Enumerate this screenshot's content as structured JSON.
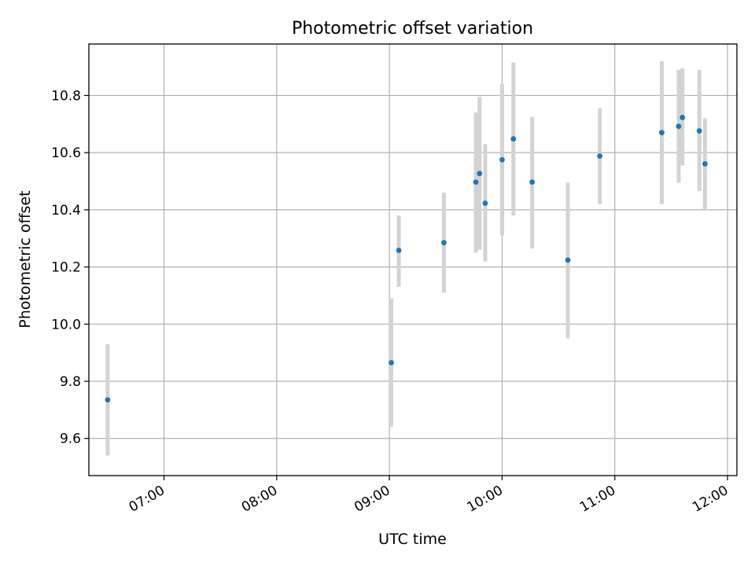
{
  "chart_data": {
    "type": "scatter",
    "title": "Photometric offset variation",
    "xlabel": "UTC time",
    "ylabel": "Photometric offset",
    "x_axis_type": "time",
    "xlim": [
      "06:20",
      "12:05"
    ],
    "ylim": [
      9.47,
      10.98
    ],
    "xticks": [
      "07:00",
      "08:00",
      "09:00",
      "10:00",
      "11:00",
      "12:00"
    ],
    "yticks": [
      "9.6",
      "9.8",
      "10.0",
      "10.2",
      "10.4",
      "10.6",
      "10.8"
    ],
    "grid": true,
    "marker_color": "#1f77b4",
    "errorbar_color": "#d3d3d3",
    "points": [
      {
        "time": "06:30",
        "offset": 9.735,
        "low": 9.54,
        "high": 9.93
      },
      {
        "time": "09:01",
        "offset": 9.865,
        "low": 9.64,
        "high": 10.09
      },
      {
        "time": "09:05",
        "offset": 10.258,
        "low": 10.13,
        "high": 10.38
      },
      {
        "time": "09:29",
        "offset": 10.285,
        "low": 10.11,
        "high": 10.46
      },
      {
        "time": "09:46",
        "offset": 10.497,
        "low": 10.25,
        "high": 10.74
      },
      {
        "time": "09:48",
        "offset": 10.527,
        "low": 10.26,
        "high": 10.795
      },
      {
        "time": "09:51",
        "offset": 10.423,
        "low": 10.22,
        "high": 10.63
      },
      {
        "time": "10:00",
        "offset": 10.575,
        "low": 10.31,
        "high": 10.84
      },
      {
        "time": "10:06",
        "offset": 10.648,
        "low": 10.38,
        "high": 10.915
      },
      {
        "time": "10:16",
        "offset": 10.497,
        "low": 10.265,
        "high": 10.725
      },
      {
        "time": "10:35",
        "offset": 10.224,
        "low": 9.95,
        "high": 10.495
      },
      {
        "time": "10:52",
        "offset": 10.588,
        "low": 10.42,
        "high": 10.755
      },
      {
        "time": "11:25",
        "offset": 10.67,
        "low": 10.42,
        "high": 10.92
      },
      {
        "time": "11:34",
        "offset": 10.692,
        "low": 10.495,
        "high": 10.89
      },
      {
        "time": "11:36",
        "offset": 10.723,
        "low": 10.555,
        "high": 10.895
      },
      {
        "time": "11:45",
        "offset": 10.676,
        "low": 10.465,
        "high": 10.89
      },
      {
        "time": "11:48",
        "offset": 10.561,
        "low": 10.4,
        "high": 10.72
      }
    ]
  }
}
